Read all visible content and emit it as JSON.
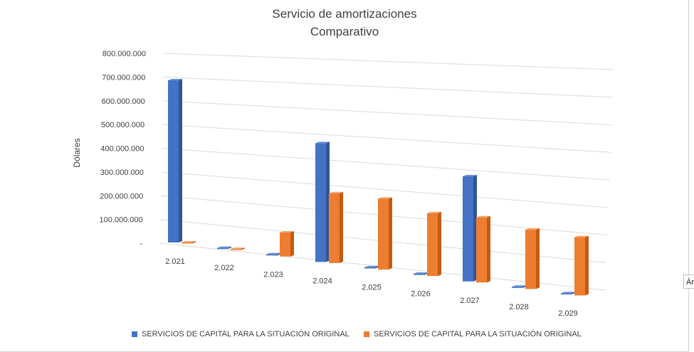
{
  "chart_data": {
    "type": "bar",
    "title": "Servicio de amortizaciones",
    "subtitle": "Comparativo",
    "ylabel": "Dólares",
    "xlabel": "",
    "ylim": [
      0,
      800000000
    ],
    "y_ticks": [
      "-",
      "100.000.000",
      "200.000.000",
      "300.000.000",
      "400.000.000",
      "500.000.000",
      "600.000.000",
      "700.000.000",
      "800.000.000"
    ],
    "categories": [
      "2.021",
      "2.022",
      "2.023",
      "2.024",
      "2.025",
      "2.026",
      "2.027",
      "2.028",
      "2.029"
    ],
    "series": [
      {
        "name": "SERVICIOS DE CAPITAL PARA LA SITUACIÓN ORIGINAL",
        "color": "#4472c4",
        "values": [
          710000000,
          2000000,
          5000000,
          520000000,
          5000000,
          5000000,
          460000000,
          5000000,
          5000000
        ]
      },
      {
        "name": "SERVICIOS DE CAPITAL PARA LA SITUACIÓN ORIGINAL",
        "color": "#ed7d31",
        "values": [
          2000000,
          2000000,
          105000000,
          305000000,
          310000000,
          275000000,
          285000000,
          260000000,
          255000000
        ]
      }
    ],
    "grid": true,
    "legend_position": "bottom",
    "style": "3d-column"
  },
  "side_tab_label": "Ár"
}
